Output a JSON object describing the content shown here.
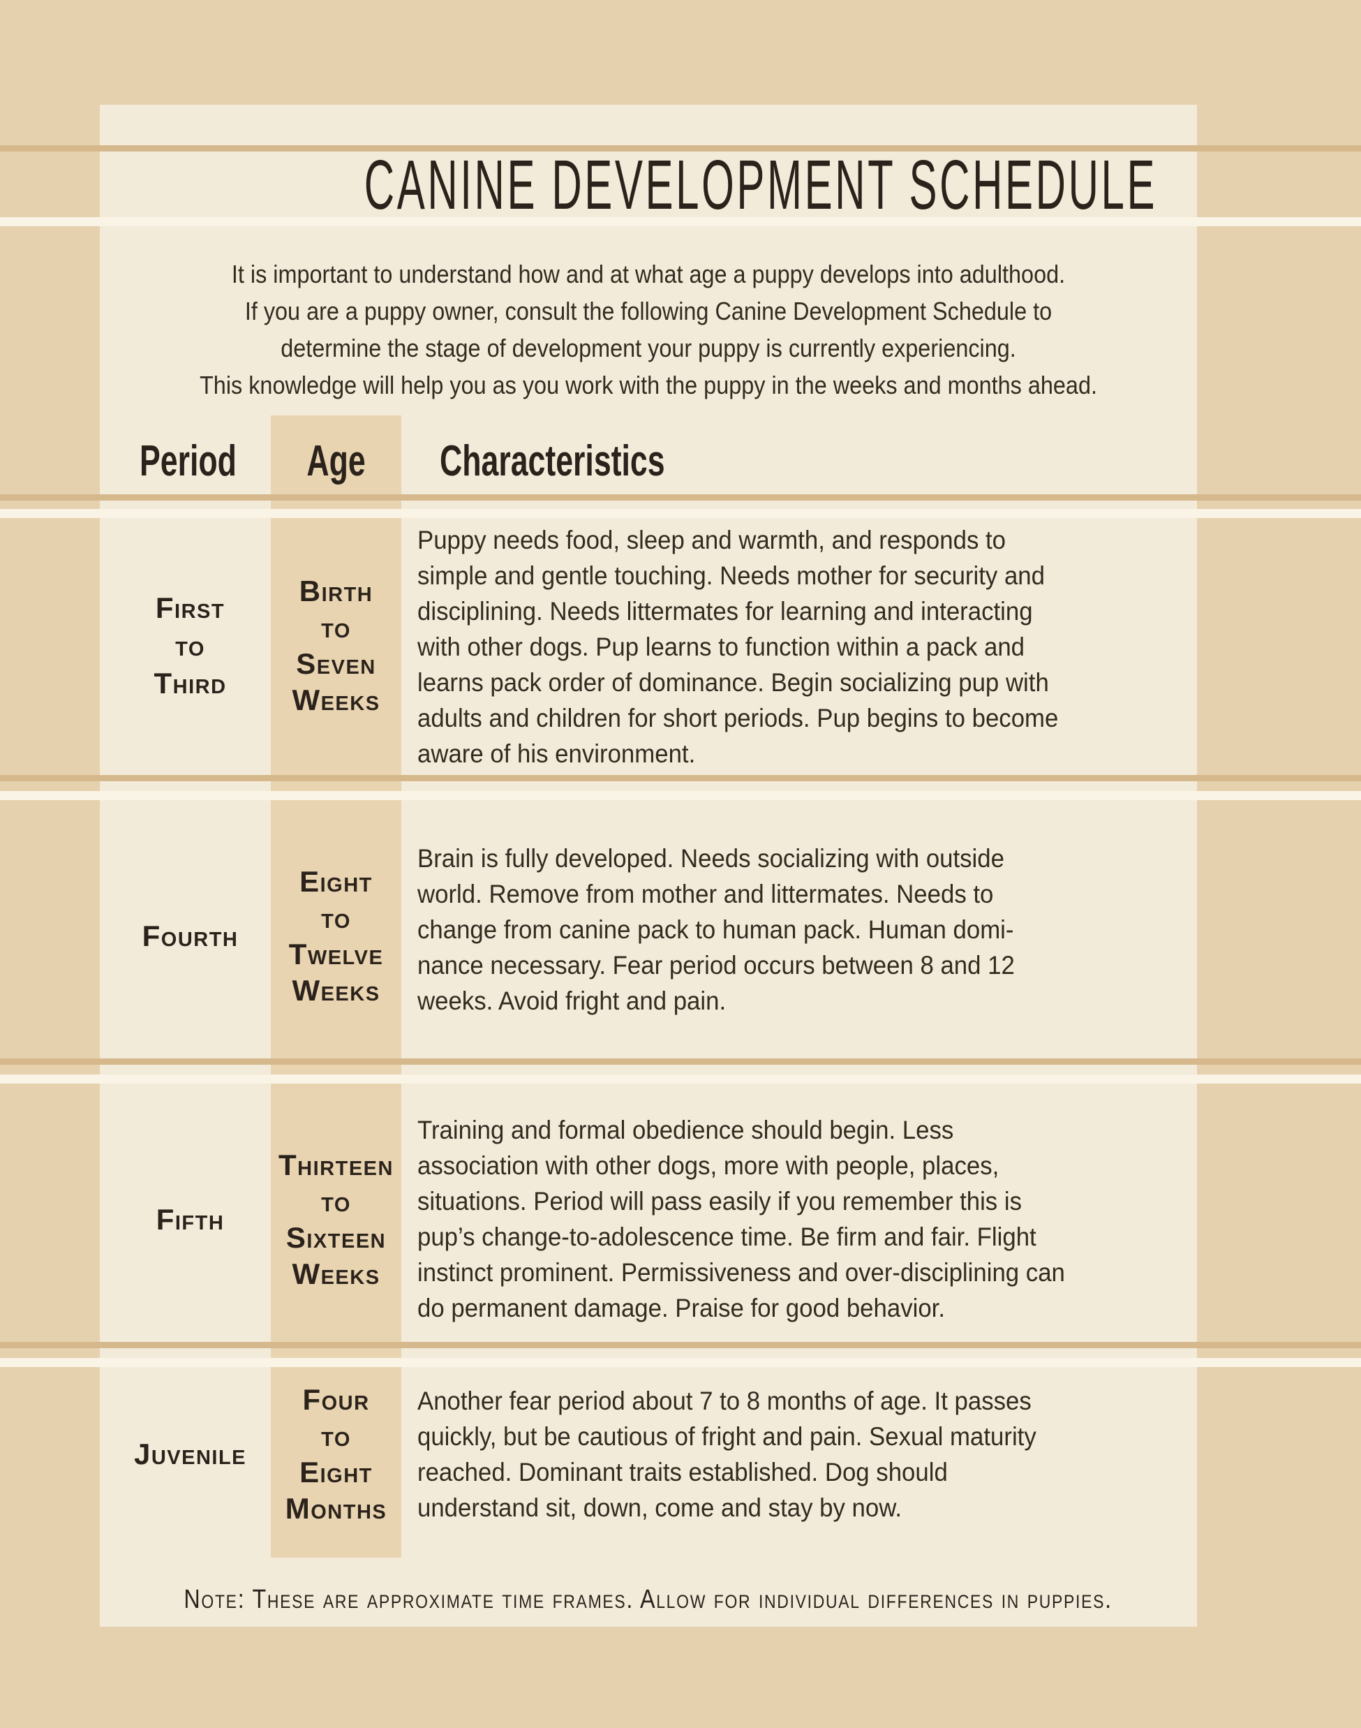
{
  "page": {
    "title": "CANINE DEVELOPMENT SCHEDULE",
    "intro_lines": [
      "It is important to understand how and at what age a puppy develops into adulthood.",
      "If you are a puppy owner, consult the following Canine Development Schedule to",
      "determine the stage of development your puppy is currently experiencing.",
      "This knowledge will help you as you work with the puppy in the weeks and months ahead."
    ],
    "note": "Note: These are approximate time frames. Allow for individual differences in puppies."
  },
  "table": {
    "headers": {
      "period": "Period",
      "age": "Age",
      "characteristics": "Characteristics"
    },
    "rows": [
      {
        "period_lines": [
          "First",
          "to",
          "Third"
        ],
        "age_lines": [
          "Birth",
          "to",
          "Seven",
          "Weeks"
        ],
        "characteristics_lines": [
          "Puppy needs food, sleep and warmth, and responds to",
          "simple and gentle touching. Needs mother for security and",
          "disciplining. Needs littermates for learning and interacting",
          "with other dogs. Pup learns to function within a pack and",
          "learns pack order of dominance. Begin socializing pup with",
          "adults and children for short periods. Pup begins to become",
          "aware of his environment."
        ]
      },
      {
        "period_lines": [
          "Fourth"
        ],
        "age_lines": [
          "Eight",
          "to",
          "Twelve",
          "Weeks"
        ],
        "characteristics_lines": [
          "Brain is fully developed. Needs socializing with outside",
          "world. Remove from mother and littermates. Needs to",
          "change from canine pack to human pack. Human domi-",
          "nance necessary. Fear period occurs between 8 and 12",
          "weeks. Avoid fright and pain."
        ]
      },
      {
        "period_lines": [
          "Fifth"
        ],
        "age_lines": [
          "Thirteen",
          "to",
          "Sixteen",
          "Weeks"
        ],
        "characteristics_lines": [
          "Training and formal obedience should begin. Less",
          "association with other dogs, more with people, places,",
          "situations. Period will pass easily if you remember this is",
          "pup’s change-to-adolescence time. Be firm and fair. Flight",
          "instinct prominent. Permissiveness and over-disciplining can",
          "do permanent damage. Praise for good behavior."
        ]
      },
      {
        "period_lines": [
          "Juvenile"
        ],
        "age_lines": [
          "Four",
          "to",
          "Eight",
          "Months"
        ],
        "characteristics_lines": [
          "Another fear period about 7 to 8 months of age. It passes",
          "quickly, but be cautious of fright and pain. Sexual maturity",
          "reached. Dominant traits established. Dog should",
          "understand sit, down, come and stay by now."
        ]
      }
    ]
  },
  "colors": {
    "bg": "#e6d1ae",
    "panel": "#f3ebda",
    "strip": "#e9d4b2",
    "rule": "#d5b88c",
    "glow": "#faf4e6",
    "ink": "#342b20",
    "head": "#2b231b"
  }
}
